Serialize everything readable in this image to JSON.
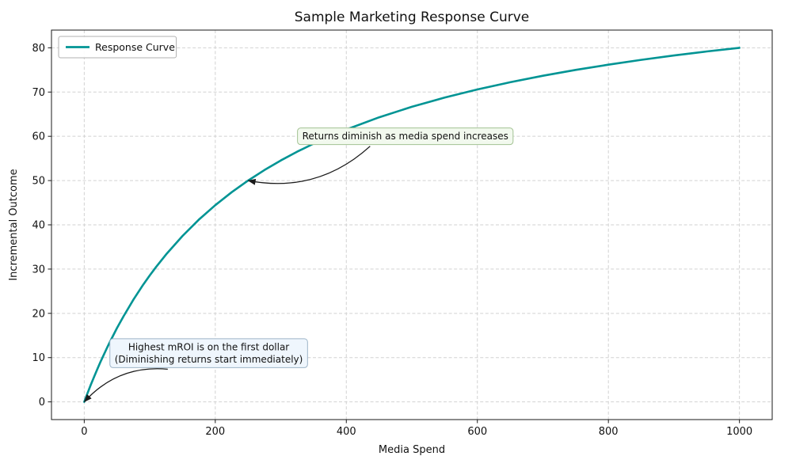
{
  "chart_data": {
    "type": "line",
    "title": "Sample Marketing Response Curve",
    "xlabel": "Media Spend",
    "ylabel": "Incremental Outcome",
    "xlim": [
      -50,
      1050
    ],
    "ylim": [
      -4,
      84
    ],
    "xticks": [
      0,
      200,
      400,
      600,
      800,
      1000
    ],
    "yticks": [
      0,
      10,
      20,
      30,
      40,
      50,
      60,
      70,
      80
    ],
    "grid": true,
    "legend": {
      "position": "upper-left",
      "entries": [
        {
          "label": "Response Curve",
          "color": "#009494"
        }
      ]
    },
    "series": [
      {
        "name": "Response Curve",
        "color": "#009494",
        "width": 2.6,
        "points": [
          [
            0,
            0
          ],
          [
            2,
            0.79
          ],
          [
            5,
            1.96
          ],
          [
            10,
            3.85
          ],
          [
            15,
            5.66
          ],
          [
            20,
            7.41
          ],
          [
            25,
            9.09
          ],
          [
            30,
            10.71
          ],
          [
            35,
            12.28
          ],
          [
            40,
            13.79
          ],
          [
            50,
            16.67
          ],
          [
            60,
            19.35
          ],
          [
            75,
            23.08
          ],
          [
            90,
            26.47
          ],
          [
            100,
            28.57
          ],
          [
            110,
            30.56
          ],
          [
            125,
            33.33
          ],
          [
            150,
            37.5
          ],
          [
            175,
            41.18
          ],
          [
            200,
            44.44
          ],
          [
            225,
            47.37
          ],
          [
            250,
            50
          ],
          [
            275,
            52.38
          ],
          [
            300,
            54.55
          ],
          [
            325,
            56.52
          ],
          [
            350,
            58.33
          ],
          [
            375,
            60
          ],
          [
            400,
            61.54
          ],
          [
            450,
            64.29
          ],
          [
            500,
            66.67
          ],
          [
            550,
            68.75
          ],
          [
            600,
            70.59
          ],
          [
            650,
            72.22
          ],
          [
            700,
            73.68
          ],
          [
            750,
            75
          ],
          [
            800,
            76.19
          ],
          [
            850,
            77.27
          ],
          [
            900,
            78.26
          ],
          [
            950,
            79.17
          ],
          [
            1000,
            80
          ]
        ]
      }
    ],
    "annotations": [
      {
        "lines": [
          "Returns diminish as media spend increases"
        ],
        "target_xy": [
          250,
          50
        ],
        "text_xy": [
          490,
          60
        ],
        "box_fill": "#f2f9ee",
        "box_stroke": "#a3c293",
        "curvature": 0.25
      },
      {
        "lines": [
          "Highest mROI is on the first dollar",
          "(Diminishing returns start immediately)"
        ],
        "target_xy": [
          0,
          0
        ],
        "text_xy": [
          190,
          11
        ],
        "box_fill": "#eff6fd",
        "box_stroke": "#9db4c8",
        "curvature": -0.25
      }
    ]
  }
}
